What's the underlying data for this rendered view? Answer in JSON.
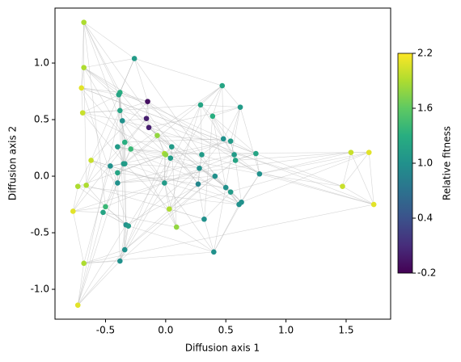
{
  "chart_data": {
    "type": "scatter",
    "xlabel": "Diffusion axis 1",
    "ylabel": "Diffusion axis 2",
    "xlim": [
      -0.92,
      1.87
    ],
    "ylim": [
      -1.264,
      1.486
    ],
    "xticks": [
      -0.5,
      {
        "value": 0,
        "label": "0.0"
      },
      0.5,
      {
        "value": 1,
        "label": "1.0"
      },
      1.5
    ],
    "yticks": [
      {
        "value": -1,
        "label": "-1.0"
      },
      -0.5,
      {
        "value": 0,
        "label": "0.0"
      },
      0.5,
      {
        "value": 1,
        "label": "1.0"
      }
    ],
    "colormap": "viridis",
    "colorbar": {
      "label": "Relative fitness",
      "lim": [
        -0.2,
        2.2
      ],
      "ticks": [
        -0.2,
        0.4,
        {
          "value": 1,
          "label": "1.0"
        },
        1.6,
        2.2
      ]
    },
    "x": [
      -0.68,
      -0.26,
      -0.68,
      -0.7,
      -0.69,
      -0.15,
      -0.16,
      -0.14,
      -0.38,
      -0.39,
      -0.38,
      -0.36,
      -0.34,
      -0.29,
      -0.4,
      -0.07,
      -0.01,
      0.0,
      0.05,
      0.04,
      -0.62,
      -0.34,
      -0.35,
      -0.46,
      -0.4,
      -0.4,
      -0.01,
      -0.66,
      -0.73,
      -0.5,
      -0.52,
      -0.77,
      0.03,
      -0.33,
      -0.31,
      0.09,
      -0.34,
      -0.38,
      -0.68,
      -0.73,
      0.47,
      0.29,
      0.62,
      0.39,
      0.3,
      0.48,
      0.54,
      0.28,
      0.57,
      0.58,
      0.75,
      0.78,
      0.41,
      0.27,
      0.5,
      0.54,
      0.63,
      0.61,
      0.32,
      0.4,
      1.54,
      1.69,
      1.47,
      1.73
    ],
    "y": [
      1.36,
      1.04,
      0.96,
      0.78,
      0.56,
      0.66,
      0.51,
      0.43,
      0.74,
      0.72,
      0.58,
      0.49,
      0.3,
      0.24,
      0.26,
      0.36,
      0.2,
      0.19,
      0.26,
      0.16,
      0.14,
      0.11,
      0.11,
      0.09,
      0.03,
      -0.06,
      -0.06,
      -0.08,
      -0.09,
      -0.27,
      -0.32,
      -0.31,
      -0.29,
      -0.43,
      -0.44,
      -0.45,
      -0.65,
      -0.75,
      -0.77,
      -1.14,
      0.8,
      0.63,
      0.61,
      0.53,
      0.19,
      0.33,
      0.31,
      0.07,
      0.19,
      0.14,
      0.2,
      0.02,
      0.0,
      -0.07,
      -0.1,
      -0.14,
      -0.23,
      -0.25,
      -0.38,
      -0.67,
      0.21,
      0.21,
      -0.09,
      -0.25
    ],
    "fitness": [
      1.9,
      1.1,
      1.9,
      2.1,
      2.0,
      -0.1,
      0.0,
      0.0,
      1.3,
      1.2,
      1.2,
      1.0,
      1.3,
      1.4,
      1.1,
      1.8,
      1.9,
      1.8,
      1.1,
      1.1,
      2.0,
      1.1,
      1.1,
      1.0,
      1.2,
      1.0,
      1.1,
      1.9,
      1.9,
      1.4,
      1.2,
      2.1,
      1.9,
      1.0,
      1.1,
      1.8,
      1.0,
      1.0,
      1.9,
      2.1,
      1.2,
      1.2,
      1.1,
      1.3,
      1.1,
      1.0,
      1.1,
      1.0,
      1.1,
      1.2,
      1.2,
      1.0,
      1.0,
      0.9,
      1.0,
      1.1,
      1.0,
      1.0,
      1.0,
      1.0,
      2.0,
      2.1,
      2.0,
      2.1
    ]
  }
}
